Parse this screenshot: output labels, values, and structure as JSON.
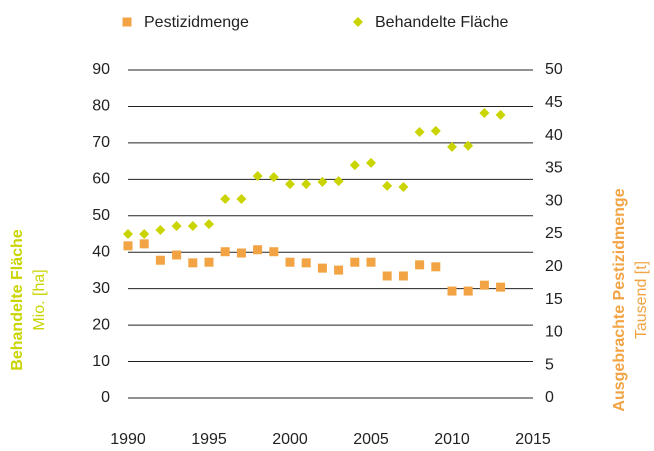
{
  "chart_data": {
    "type": "scatter",
    "x": [
      1990,
      1991,
      1992,
      1993,
      1994,
      1995,
      1996,
      1997,
      1998,
      1999,
      2000,
      2001,
      2002,
      2003,
      2004,
      2005,
      2006,
      2007,
      2008,
      2009,
      2010,
      2011,
      2012,
      2013
    ],
    "series": [
      {
        "name": "Pestizidmenge",
        "color": "#f2a444",
        "marker": "square",
        "axis": "y2",
        "values": [
          23.2,
          23.5,
          21.0,
          21.8,
          20.6,
          20.7,
          22.3,
          22.1,
          22.6,
          22.3,
          20.7,
          20.6,
          19.8,
          19.5,
          20.7,
          20.7,
          18.6,
          18.6,
          20.3,
          20.0,
          16.3,
          16.3,
          17.2,
          16.9
        ]
      },
      {
        "name": "Behandelte Fläche",
        "color": "#c9d400",
        "marker": "diamond",
        "values": [
          45.0,
          45.0,
          46.1,
          47.2,
          47.2,
          47.7,
          54.6,
          54.6,
          60.9,
          60.6,
          58.7,
          58.7,
          59.3,
          59.5,
          63.9,
          64.5,
          58.2,
          57.9,
          73.0,
          73.3,
          68.9,
          69.2,
          78.2,
          77.7
        ]
      }
    ],
    "y_label": {
      "title": "Behandelte Fläche",
      "unit": "Mio. [ha]",
      "color": "#c9d400"
    },
    "y2_label": {
      "title": "Ausgebrachte Pestizidmenge",
      "unit": "Tausend [t]",
      "color": "#f2a444"
    },
    "xlim": [
      1990,
      2015
    ],
    "xticks": [
      1990,
      1995,
      2000,
      2005,
      2010,
      2015
    ],
    "ylim": [
      0,
      90
    ],
    "yticks": [
      0,
      10,
      20,
      30,
      40,
      50,
      60,
      70,
      80,
      90
    ],
    "y2lim": [
      0,
      50
    ],
    "y2ticks": [
      0,
      5,
      10,
      15,
      20,
      25,
      30,
      35,
      40,
      45,
      50
    ],
    "grid": true,
    "legend": "top"
  }
}
